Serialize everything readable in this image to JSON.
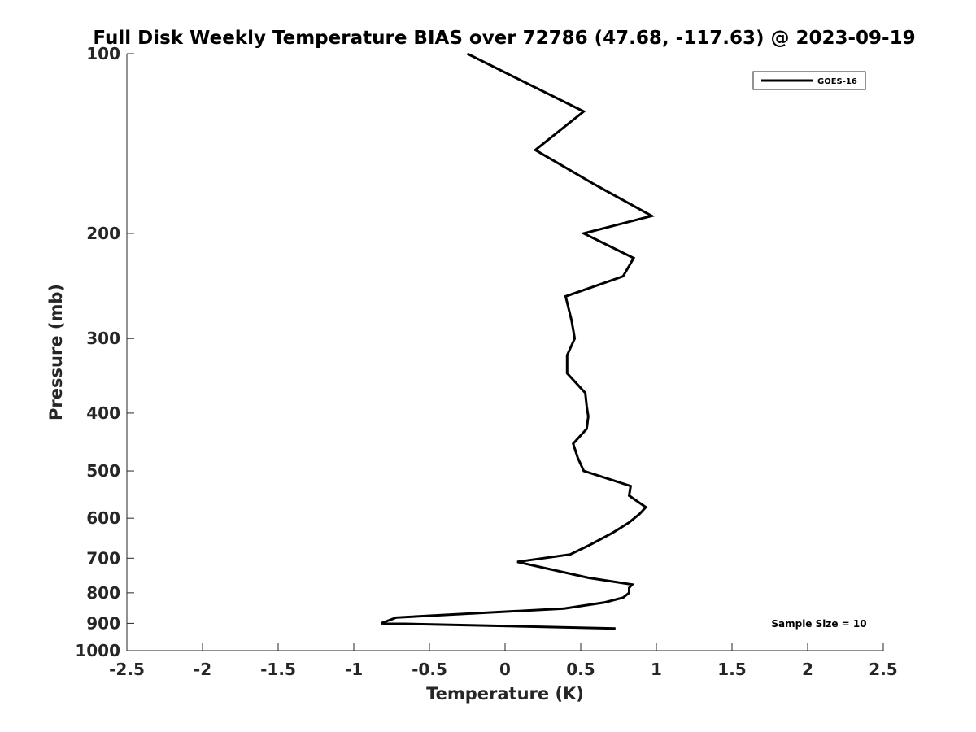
{
  "chart_data": {
    "type": "line",
    "title": "Full Disk Weekly Temperature BIAS over 72786 (47.68, -117.63) @ 2023-09-19",
    "xlabel": "Temperature (K)",
    "ylabel": "Pressure (mb)",
    "xlim": [
      -2.5,
      2.5
    ],
    "ylim": [
      1000,
      100
    ],
    "y_scale": "log",
    "y_reversed": true,
    "grid": false,
    "x_ticks": [
      "-2.5",
      "-2",
      "-1.5",
      "-1",
      "-0.5",
      "0",
      "0.5",
      "1",
      "1.5",
      "2",
      "2.5"
    ],
    "y_ticks": [
      "100",
      "200",
      "300",
      "400",
      "500",
      "600",
      "700",
      "800",
      "900",
      "1000"
    ],
    "legend": {
      "placement": "top-right",
      "entries": [
        "GOES-16"
      ]
    },
    "annotation": "Sample Size = 10",
    "series": [
      {
        "name": "GOES-16",
        "color": "#000000",
        "points": [
          {
            "x": -0.25,
            "p": 100
          },
          {
            "x": 0.52,
            "p": 125
          },
          {
            "x": 0.2,
            "p": 145
          },
          {
            "x": 0.58,
            "p": 165
          },
          {
            "x": 0.97,
            "p": 187
          },
          {
            "x": 0.52,
            "p": 200
          },
          {
            "x": 0.85,
            "p": 220
          },
          {
            "x": 0.78,
            "p": 236
          },
          {
            "x": 0.4,
            "p": 255
          },
          {
            "x": 0.44,
            "p": 280
          },
          {
            "x": 0.46,
            "p": 300
          },
          {
            "x": 0.41,
            "p": 320
          },
          {
            "x": 0.41,
            "p": 343
          },
          {
            "x": 0.53,
            "p": 370
          },
          {
            "x": 0.54,
            "p": 390
          },
          {
            "x": 0.55,
            "p": 405
          },
          {
            "x": 0.54,
            "p": 425
          },
          {
            "x": 0.45,
            "p": 450
          },
          {
            "x": 0.48,
            "p": 475
          },
          {
            "x": 0.52,
            "p": 500
          },
          {
            "x": 0.83,
            "p": 530
          },
          {
            "x": 0.82,
            "p": 550
          },
          {
            "x": 0.93,
            "p": 575
          },
          {
            "x": 0.89,
            "p": 590
          },
          {
            "x": 0.82,
            "p": 610
          },
          {
            "x": 0.71,
            "p": 635
          },
          {
            "x": 0.56,
            "p": 665
          },
          {
            "x": 0.43,
            "p": 690
          },
          {
            "x": 0.08,
            "p": 710
          },
          {
            "x": 0.55,
            "p": 755
          },
          {
            "x": 0.84,
            "p": 775
          },
          {
            "x": 0.82,
            "p": 785
          },
          {
            "x": 0.82,
            "p": 800
          },
          {
            "x": 0.78,
            "p": 815
          },
          {
            "x": 0.66,
            "p": 830
          },
          {
            "x": 0.39,
            "p": 850
          },
          {
            "x": -0.72,
            "p": 880
          },
          {
            "x": -0.82,
            "p": 900
          },
          {
            "x": 0.73,
            "p": 918
          }
        ]
      }
    ]
  }
}
